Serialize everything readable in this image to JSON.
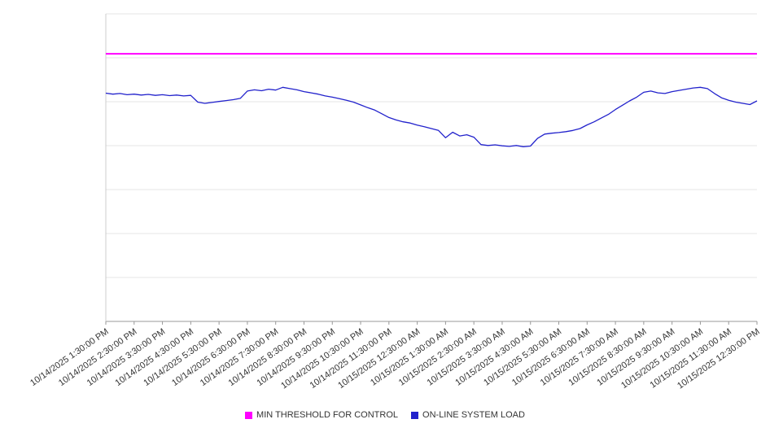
{
  "legend": {
    "threshold_label": "MIN THRESHOLD FOR CONTROL",
    "load_label": "ON-LINE SYSTEM LOAD"
  },
  "colors": {
    "threshold": "#ff00ff",
    "load": "#2222cc",
    "grid": "#e6e6e6",
    "axis": "#999999",
    "left_axis": "#cccccc",
    "tick_label": "#333333"
  },
  "chart_data": {
    "type": "line",
    "title": "",
    "xlabel": "",
    "ylabel": "",
    "ylim": [
      0,
      100
    ],
    "grid": true,
    "gridline_count": 8,
    "legend_position": "bottom",
    "x_tick_labels": [
      "10/14/2025 1:30:00 PM",
      "10/14/2025 2:30:00 PM",
      "10/14/2025 3:30:00 PM",
      "10/14/2025 4:30:00 PM",
      "10/14/2025 5:30:00 PM",
      "10/14/2025 6:30:00 PM",
      "10/14/2025 7:30:00 PM",
      "10/14/2025 8:30:00 PM",
      "10/14/2025 9:30:00 PM",
      "10/14/2025 10:30:00 PM",
      "10/14/2025 11:30:00 PM",
      "10/15/2025 12:30:00 AM",
      "10/15/2025 1:30:00 AM",
      "10/15/2025 2:30:00 AM",
      "10/15/2025 3:30:00 AM",
      "10/15/2025 4:30:00 AM",
      "10/15/2025 5:30:00 AM",
      "10/15/2025 6:30:00 AM",
      "10/15/2025 7:30:00 AM",
      "10/15/2025 8:30:00 AM",
      "10/15/2025 9:30:00 AM",
      "10/15/2025 10:30:00 AM",
      "10/15/2025 11:30:00 AM",
      "10/15/2025 12:30:00 PM"
    ],
    "x_span_hours": 23,
    "series": [
      {
        "name": "MIN THRESHOLD FOR CONTROL",
        "color": "#ff00ff",
        "constant_value": 87
      },
      {
        "name": "ON-LINE SYSTEM LOAD",
        "color": "#2222cc",
        "x_start_hour": 0,
        "x_step_hours": 0.25,
        "values": [
          74.2,
          73.9,
          74.1,
          73.7,
          73.9,
          73.6,
          73.8,
          73.5,
          73.7,
          73.4,
          73.6,
          73.3,
          73.5,
          71.3,
          70.9,
          71.2,
          71.5,
          71.8,
          72.1,
          72.5,
          74.9,
          75.3,
          75.0,
          75.5,
          75.2,
          76.1,
          75.7,
          75.3,
          74.7,
          74.3,
          73.9,
          73.3,
          72.9,
          72.4,
          71.9,
          71.3,
          70.4,
          69.5,
          68.7,
          67.5,
          66.3,
          65.5,
          64.9,
          64.5,
          63.8,
          63.3,
          62.7,
          62.1,
          59.7,
          61.5,
          60.3,
          60.7,
          59.9,
          57.5,
          57.2,
          57.4,
          57.1,
          56.9,
          57.2,
          56.8,
          57.0,
          59.5,
          60.9,
          61.2,
          61.4,
          61.7,
          62.1,
          62.7,
          63.9,
          64.9,
          66.1,
          67.3,
          68.9,
          70.3,
          71.7,
          72.9,
          74.5,
          74.9,
          74.3,
          74.1,
          74.7,
          75.1,
          75.5,
          75.9,
          76.1,
          75.7,
          74.1,
          72.7,
          71.9,
          71.3,
          70.9,
          70.5,
          71.7
        ]
      }
    ]
  }
}
